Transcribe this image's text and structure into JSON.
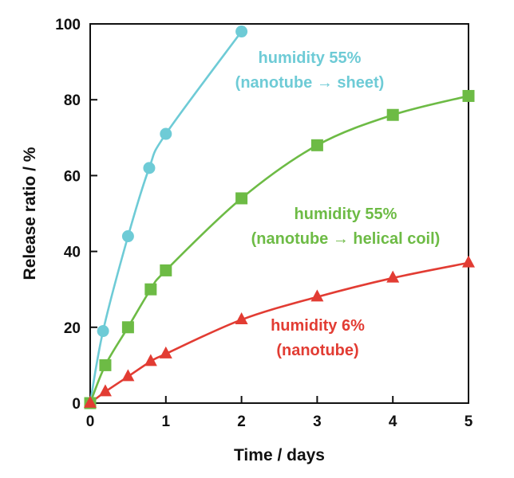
{
  "chart_data": {
    "type": "line",
    "title": "",
    "xlabel": "Time / days",
    "ylabel": "Release ratio / %",
    "xlim": [
      0,
      5
    ],
    "ylim": [
      0,
      100
    ],
    "x_ticks": [
      "0",
      "1",
      "2",
      "3",
      "4",
      "5"
    ],
    "y_ticks": [
      "0",
      "20",
      "40",
      "60",
      "80",
      "100"
    ],
    "grid": false,
    "legend": "none (inline annotations)",
    "series": [
      {
        "name": "humidity 55% (nanotube → sheet)",
        "color": "#6ecbd6",
        "marker": "circle",
        "x": [
          0,
          0.17,
          0.5,
          0.78,
          1.0,
          2.0
        ],
        "y": [
          0,
          19,
          44,
          62,
          71,
          98
        ]
      },
      {
        "name": "humidity 55% (nanotube → helical coil)",
        "color": "#6dbb45",
        "marker": "square",
        "x": [
          0,
          0.2,
          0.5,
          0.8,
          1.0,
          2.0,
          3.0,
          4.0,
          5.0
        ],
        "y": [
          0,
          10,
          20,
          30,
          35,
          54,
          68,
          76,
          81
        ]
      },
      {
        "name": "humidity 6% (nanotube)",
        "color": "#e23c33",
        "marker": "triangle",
        "x": [
          0,
          0.2,
          0.5,
          0.8,
          1.0,
          2.0,
          3.0,
          4.0,
          5.0
        ],
        "y": [
          0,
          3,
          7,
          11,
          13,
          22,
          28,
          33,
          37
        ]
      }
    ],
    "annotations": [
      {
        "lines": [
          "humidity 55%",
          "(nanotube → sheet)"
        ],
        "color": "#6ecbd6"
      },
      {
        "lines": [
          "humidity 55%",
          "(nanotube → helical coil)"
        ],
        "color": "#6dbb45"
      },
      {
        "lines": [
          "humidity 6%",
          "(nanotube)"
        ],
        "color": "#e23c33"
      }
    ]
  }
}
